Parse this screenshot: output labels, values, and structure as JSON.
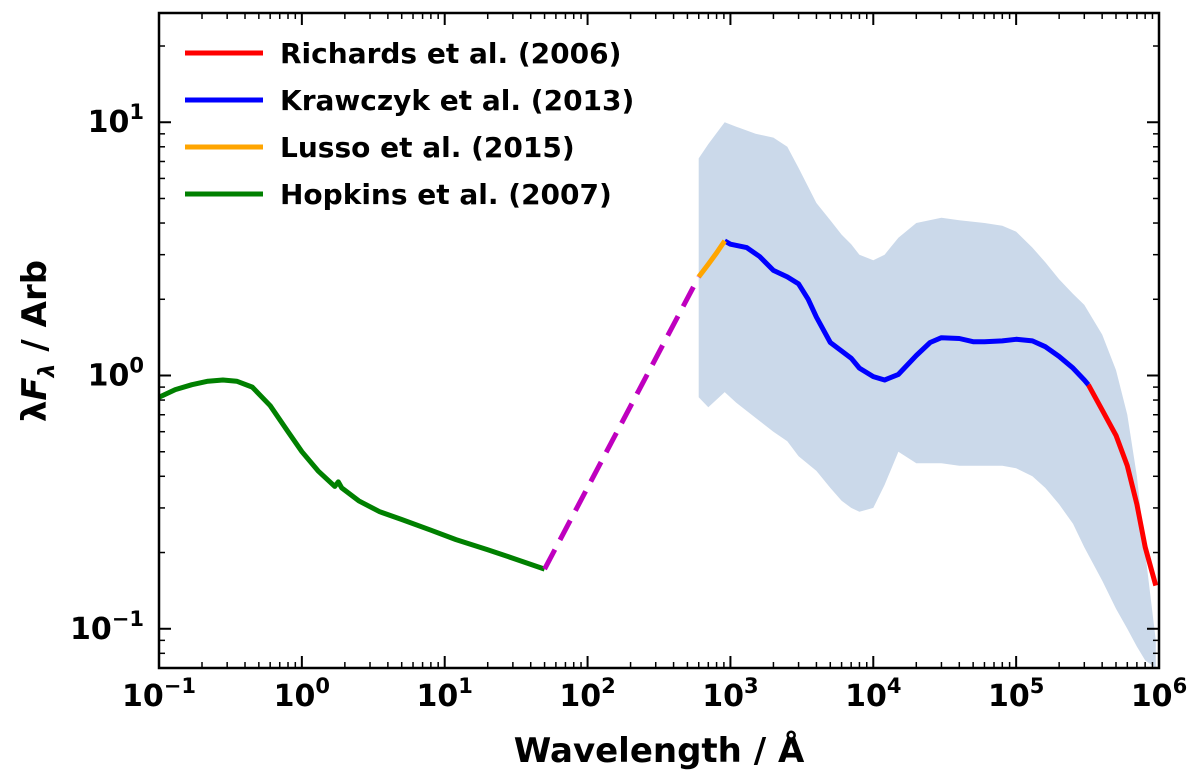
{
  "chart_data": {
    "type": "line",
    "xscale": "log",
    "yscale": "log",
    "xlabel": "Wavelength / Å",
    "xlabel_parts": {
      "text": "Wavelength / Å"
    },
    "ylabel": "λF_λ / Arb",
    "ylabel_parts": {
      "lambda": "λ",
      "F": "F",
      "sub": "λ",
      "rest": " / Arb"
    },
    "xlim": [
      0.1,
      1000000
    ],
    "ylim": [
      0.07,
      27
    ],
    "legend_position": "upper-left",
    "x_ticks": [
      {
        "base": "10",
        "exp": "−1",
        "value": 0.1
      },
      {
        "base": "10",
        "exp": "0",
        "value": 1
      },
      {
        "base": "10",
        "exp": "1",
        "value": 10
      },
      {
        "base": "10",
        "exp": "2",
        "value": 100
      },
      {
        "base": "10",
        "exp": "3",
        "value": 1000
      },
      {
        "base": "10",
        "exp": "4",
        "value": 10000
      },
      {
        "base": "10",
        "exp": "5",
        "value": 100000
      },
      {
        "base": "10",
        "exp": "6",
        "value": 1000000
      }
    ],
    "y_ticks": [
      {
        "base": "10",
        "exp": "−1",
        "value": 0.1
      },
      {
        "base": "10",
        "exp": "0",
        "value": 1
      },
      {
        "base": "10",
        "exp": "1",
        "value": 10
      }
    ],
    "series": [
      {
        "name": "Richards et al. (2006)",
        "color": "#ff0000",
        "in_legend": true,
        "x": [
          320000,
          400000,
          500000,
          600000,
          700000,
          800000,
          950000
        ],
        "y": [
          0.92,
          0.73,
          0.58,
          0.44,
          0.31,
          0.21,
          0.148
        ]
      },
      {
        "name": "Krawczyk et al. (2013)",
        "color": "#0000ff",
        "in_legend": true,
        "x": [
          912,
          1000,
          1300,
          1600,
          2000,
          2500,
          3000,
          3500,
          4000,
          5000,
          6000,
          7000,
          8000,
          10000,
          12000,
          15000,
          20000,
          25000,
          30000,
          40000,
          50000,
          60000,
          80000,
          100000,
          130000,
          160000,
          200000,
          250000,
          300000,
          320000
        ],
        "y": [
          3.4,
          3.3,
          3.2,
          2.95,
          2.6,
          2.45,
          2.3,
          2.0,
          1.7,
          1.35,
          1.25,
          1.17,
          1.07,
          0.99,
          0.96,
          1.01,
          1.2,
          1.35,
          1.41,
          1.4,
          1.36,
          1.36,
          1.37,
          1.39,
          1.37,
          1.3,
          1.19,
          1.07,
          0.96,
          0.92
        ]
      },
      {
        "name": "Lusso et al. (2015)",
        "color": "#ffa500",
        "in_legend": true,
        "x": [
          600,
          700,
          800,
          912
        ],
        "y": [
          2.45,
          2.75,
          3.05,
          3.4
        ]
      },
      {
        "name": "Hopkins et al. (2007)",
        "color": "#008000",
        "in_legend": true,
        "x": [
          0.1,
          0.13,
          0.17,
          0.22,
          0.28,
          0.35,
          0.45,
          0.6,
          0.8,
          1.0,
          1.3,
          1.7,
          1.8,
          1.9,
          2.5,
          3.5,
          5,
          8,
          12,
          20,
          30,
          50
        ],
        "y": [
          0.82,
          0.88,
          0.92,
          0.95,
          0.96,
          0.95,
          0.9,
          0.76,
          0.6,
          0.5,
          0.42,
          0.365,
          0.38,
          0.36,
          0.32,
          0.29,
          0.27,
          0.245,
          0.225,
          0.205,
          0.19,
          0.172
        ]
      },
      {
        "name": "interpolation",
        "color": "#bf00bf",
        "style": "dashed",
        "in_legend": false,
        "x": [
          50,
          600
        ],
        "y": [
          0.172,
          2.45
        ]
      }
    ],
    "band": {
      "color": "#cbd9ea",
      "x": [
        600,
        700,
        912,
        1100,
        1500,
        2000,
        2500,
        3000,
        4000,
        5000,
        6000,
        7000,
        8000,
        10000,
        12000,
        15000,
        20000,
        30000,
        40000,
        60000,
        80000,
        100000,
        130000,
        160000,
        200000,
        250000,
        300000,
        400000,
        500000,
        600000,
        700000,
        800000,
        950000
      ],
      "upper": [
        7.2,
        8.2,
        10.0,
        9.6,
        9.0,
        8.7,
        8.0,
        6.6,
        4.8,
        4.1,
        3.6,
        3.3,
        3.0,
        2.85,
        3.0,
        3.5,
        4.0,
        4.2,
        4.1,
        4.0,
        3.9,
        3.7,
        3.2,
        2.8,
        2.4,
        2.1,
        1.9,
        1.45,
        1.05,
        0.7,
        0.4,
        0.2,
        0.09
      ],
      "lower": [
        0.82,
        0.75,
        0.86,
        0.78,
        0.68,
        0.6,
        0.55,
        0.48,
        0.42,
        0.36,
        0.32,
        0.3,
        0.29,
        0.3,
        0.37,
        0.5,
        0.45,
        0.45,
        0.44,
        0.44,
        0.44,
        0.43,
        0.4,
        0.36,
        0.31,
        0.26,
        0.21,
        0.155,
        0.12,
        0.1,
        0.085,
        0.075,
        0.07
      ]
    }
  }
}
